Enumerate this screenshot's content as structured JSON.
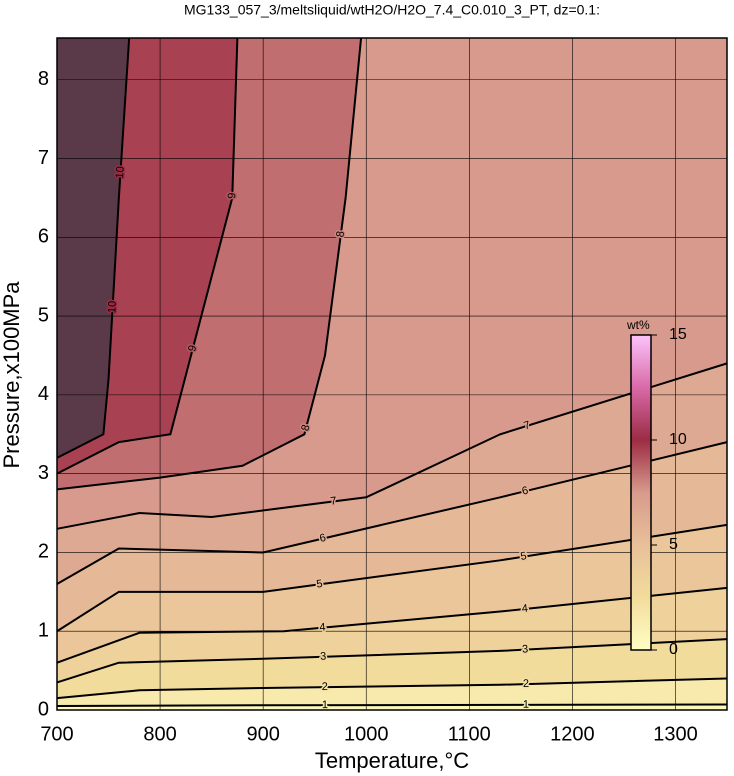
{
  "chart_data": {
    "type": "contour",
    "title": "MG133_057_3/meltsliquid/wtH2O/H2O_7.4_C0.010_3_PT, dz=0.1:",
    "xlabel": "Temperature,°C",
    "ylabel": "Pressure,x100MPa",
    "xlim": [
      700,
      1350
    ],
    "ylim": [
      0,
      8.53
    ],
    "xticks": [
      700,
      800,
      900,
      1000,
      1100,
      1200,
      1300
    ],
    "yticks": [
      0,
      1,
      2,
      3,
      4,
      5,
      6,
      7,
      8
    ],
    "grid": true,
    "colormap": [
      "#ffffc4",
      "#f2dc9c",
      "#e8c09a",
      "#d89a8c",
      "#9c2c44",
      "#d86aa8",
      "#fcc4fc"
    ],
    "colorbar": {
      "label": "wt%",
      "lim": [
        0,
        15
      ],
      "ticks": [
        0,
        5,
        10,
        15
      ]
    },
    "contours": [
      {
        "level": 10,
        "x": [
          700,
          745,
          750,
          760,
          770
        ],
        "y": [
          3.2,
          3.5,
          4.2,
          6.5,
          8.53
        ]
      },
      {
        "level": 9,
        "x": [
          700,
          760,
          810,
          830,
          870,
          875
        ],
        "y": [
          3.0,
          3.4,
          3.5,
          4.5,
          6.5,
          8.53
        ]
      },
      {
        "level": 8,
        "x": [
          700,
          800,
          880,
          940,
          960,
          980,
          995
        ],
        "y": [
          2.8,
          2.95,
          3.1,
          3.5,
          4.5,
          6.5,
          8.53
        ]
      },
      {
        "level": 7,
        "x": [
          700,
          780,
          850,
          1000,
          1130,
          1350
        ],
        "y": [
          2.3,
          2.5,
          2.45,
          2.7,
          3.5,
          4.4
        ]
      },
      {
        "level": 6,
        "x": [
          700,
          760,
          900,
          1130,
          1350
        ],
        "y": [
          1.6,
          2.05,
          2.0,
          2.7,
          3.4
        ]
      },
      {
        "level": 5,
        "x": [
          700,
          760,
          900,
          1130,
          1350
        ],
        "y": [
          1.0,
          1.5,
          1.5,
          1.9,
          2.35
        ]
      },
      {
        "level": 4,
        "x": [
          700,
          780,
          920,
          1130,
          1350
        ],
        "y": [
          0.6,
          0.98,
          1.0,
          1.25,
          1.55
        ]
      },
      {
        "level": 3,
        "x": [
          700,
          760,
          900,
          1130,
          1350
        ],
        "y": [
          0.35,
          0.6,
          0.65,
          0.75,
          0.9
        ]
      },
      {
        "level": 2,
        "x": [
          700,
          780,
          900,
          1130,
          1350
        ],
        "y": [
          0.15,
          0.25,
          0.28,
          0.32,
          0.4
        ]
      },
      {
        "level": 1,
        "x": [
          700,
          900,
          1350
        ],
        "y": [
          0.05,
          0.06,
          0.07
        ]
      }
    ]
  }
}
